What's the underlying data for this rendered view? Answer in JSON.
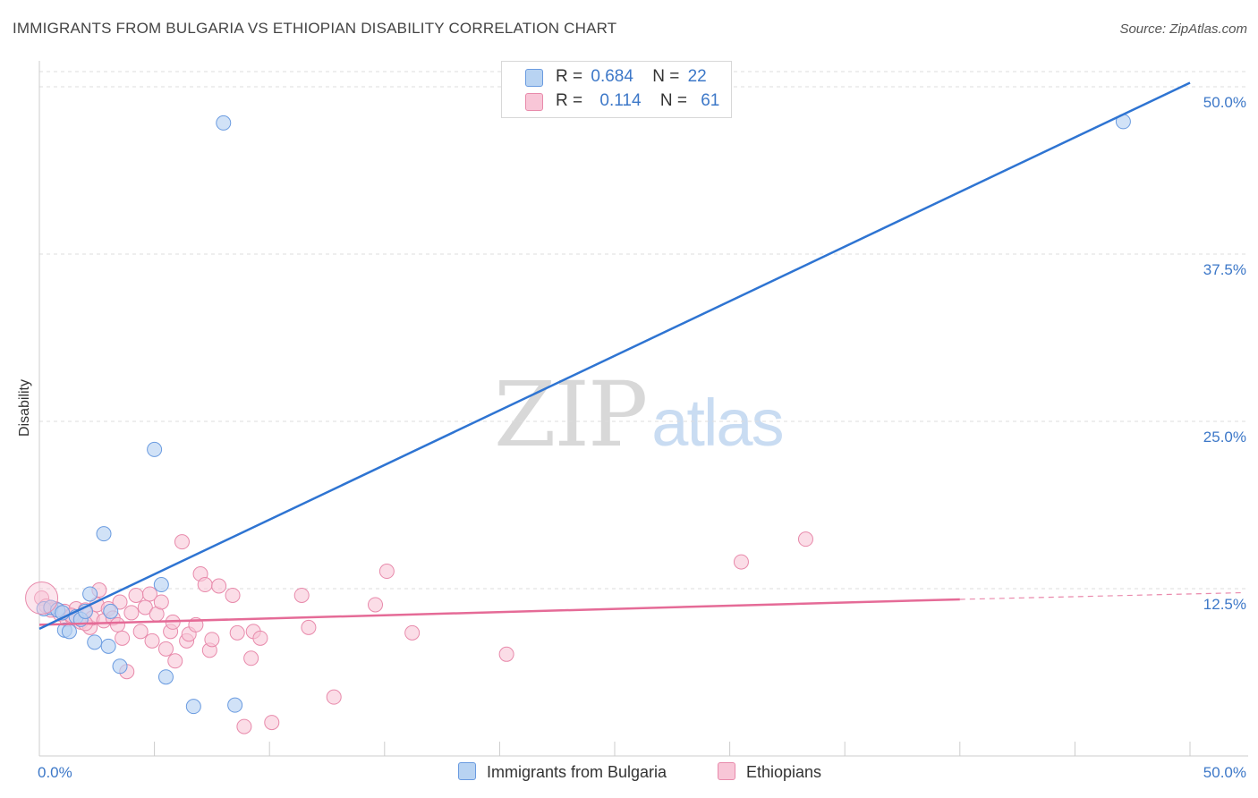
{
  "header": {
    "title": "IMMIGRANTS FROM BULGARIA VS ETHIOPIAN DISABILITY CORRELATION CHART",
    "source": "Source: ZipAtlas.com"
  },
  "watermark": {
    "zip": "ZIP",
    "atlas": "atlas"
  },
  "colors": {
    "blue_fill": "#b8d3f2",
    "blue_stroke": "#6a9be0",
    "blue_line": "#2e74d2",
    "pink_fill": "#f8c6d7",
    "pink_stroke": "#e88aab",
    "pink_line": "#e56b97",
    "tick_label": "#3d78c8",
    "grid": "#dddddd"
  },
  "legend_top": {
    "rows": [
      {
        "r_label": "R =",
        "r_value": "0.684",
        "n_label": "N =",
        "n_value": "22"
      },
      {
        "r_label": "R =",
        "r_value": "0.114",
        "n_label": "N =",
        "n_value": "61"
      }
    ]
  },
  "legend_bottom": {
    "items": [
      {
        "label": "Immigrants from Bulgaria"
      },
      {
        "label": "Ethiopians"
      }
    ]
  },
  "chart_data": {
    "type": "scatter",
    "title": "IMMIGRANTS FROM BULGARIA VS ETHIOPIAN DISABILITY CORRELATION CHART",
    "xlabel": "",
    "ylabel": "Disability",
    "xlim": [
      0,
      50
    ],
    "ylim": [
      0,
      50
    ],
    "x_tick_labels": [
      "0.0%",
      "50.0%"
    ],
    "y_ticks": [
      12.5,
      25.0,
      37.5,
      50.0
    ],
    "y_tick_labels": [
      "12.5%",
      "25.0%",
      "37.5%",
      "50.0%"
    ],
    "grid": true,
    "series": [
      {
        "name": "Immigrants from Bulgaria",
        "R": 0.684,
        "N": 22,
        "trend": {
          "x": [
            0,
            50
          ],
          "y": [
            9.5,
            50.3
          ],
          "extends_past": false
        },
        "points": [
          [
            0.2,
            11.0
          ],
          [
            0.5,
            11.1
          ],
          [
            0.8,
            10.9
          ],
          [
            1.0,
            10.7
          ],
          [
            1.1,
            9.4
          ],
          [
            1.3,
            9.3
          ],
          [
            1.6,
            10.4
          ],
          [
            1.8,
            10.2
          ],
          [
            2.0,
            10.8
          ],
          [
            2.2,
            12.1
          ],
          [
            2.4,
            8.5
          ],
          [
            2.8,
            16.6
          ],
          [
            3.0,
            8.2
          ],
          [
            3.1,
            10.8
          ],
          [
            3.5,
            6.7
          ],
          [
            5.0,
            22.9
          ],
          [
            5.3,
            12.8
          ],
          [
            5.5,
            5.9
          ],
          [
            6.7,
            3.7
          ],
          [
            8.0,
            47.3
          ],
          [
            8.5,
            3.8
          ],
          [
            47.1,
            47.4
          ]
        ]
      },
      {
        "name": "Ethiopians",
        "R": 0.114,
        "N": 61,
        "trend": {
          "x": [
            0,
            40
          ],
          "y": [
            9.8,
            11.7
          ],
          "dashed_to": [
            50,
            12.2
          ]
        },
        "points": [
          [
            0.1,
            11.8
          ],
          [
            0.3,
            11.2
          ],
          [
            0.5,
            10.9
          ],
          [
            0.7,
            11.0
          ],
          [
            0.9,
            10.6
          ],
          [
            1.1,
            10.8
          ],
          [
            1.2,
            10.2
          ],
          [
            1.4,
            10.4
          ],
          [
            1.6,
            11.0
          ],
          [
            1.8,
            10.0
          ],
          [
            2.0,
            10.9
          ],
          [
            2.2,
            9.6
          ],
          [
            2.3,
            10.3
          ],
          [
            2.5,
            11.3
          ],
          [
            2.6,
            12.4
          ],
          [
            2.8,
            10.1
          ],
          [
            3.0,
            11.0
          ],
          [
            3.2,
            10.3
          ],
          [
            3.4,
            9.8
          ],
          [
            3.5,
            11.5
          ],
          [
            3.6,
            8.8
          ],
          [
            3.8,
            6.3
          ],
          [
            4.0,
            10.7
          ],
          [
            4.2,
            12.0
          ],
          [
            4.4,
            9.3
          ],
          [
            4.6,
            11.1
          ],
          [
            4.8,
            12.1
          ],
          [
            4.9,
            8.6
          ],
          [
            5.1,
            10.6
          ],
          [
            5.3,
            11.5
          ],
          [
            5.5,
            8.0
          ],
          [
            5.7,
            9.3
          ],
          [
            5.8,
            10.0
          ],
          [
            5.9,
            7.1
          ],
          [
            6.2,
            16.0
          ],
          [
            6.4,
            8.6
          ],
          [
            6.5,
            9.1
          ],
          [
            6.8,
            9.8
          ],
          [
            7.0,
            13.6
          ],
          [
            7.2,
            12.8
          ],
          [
            7.4,
            7.9
          ],
          [
            7.5,
            8.7
          ],
          [
            7.8,
            12.7
          ],
          [
            8.4,
            12.0
          ],
          [
            8.6,
            9.2
          ],
          [
            8.9,
            2.2
          ],
          [
            9.2,
            7.3
          ],
          [
            9.3,
            9.3
          ],
          [
            9.6,
            8.8
          ],
          [
            10.1,
            2.5
          ],
          [
            11.4,
            12.0
          ],
          [
            11.7,
            9.6
          ],
          [
            12.8,
            4.4
          ],
          [
            14.6,
            11.3
          ],
          [
            15.1,
            13.8
          ],
          [
            16.2,
            9.2
          ],
          [
            20.3,
            7.6
          ],
          [
            30.5,
            14.5
          ],
          [
            33.3,
            16.2
          ],
          [
            1.4,
            10.5
          ],
          [
            2.0,
            9.9
          ]
        ]
      }
    ]
  }
}
